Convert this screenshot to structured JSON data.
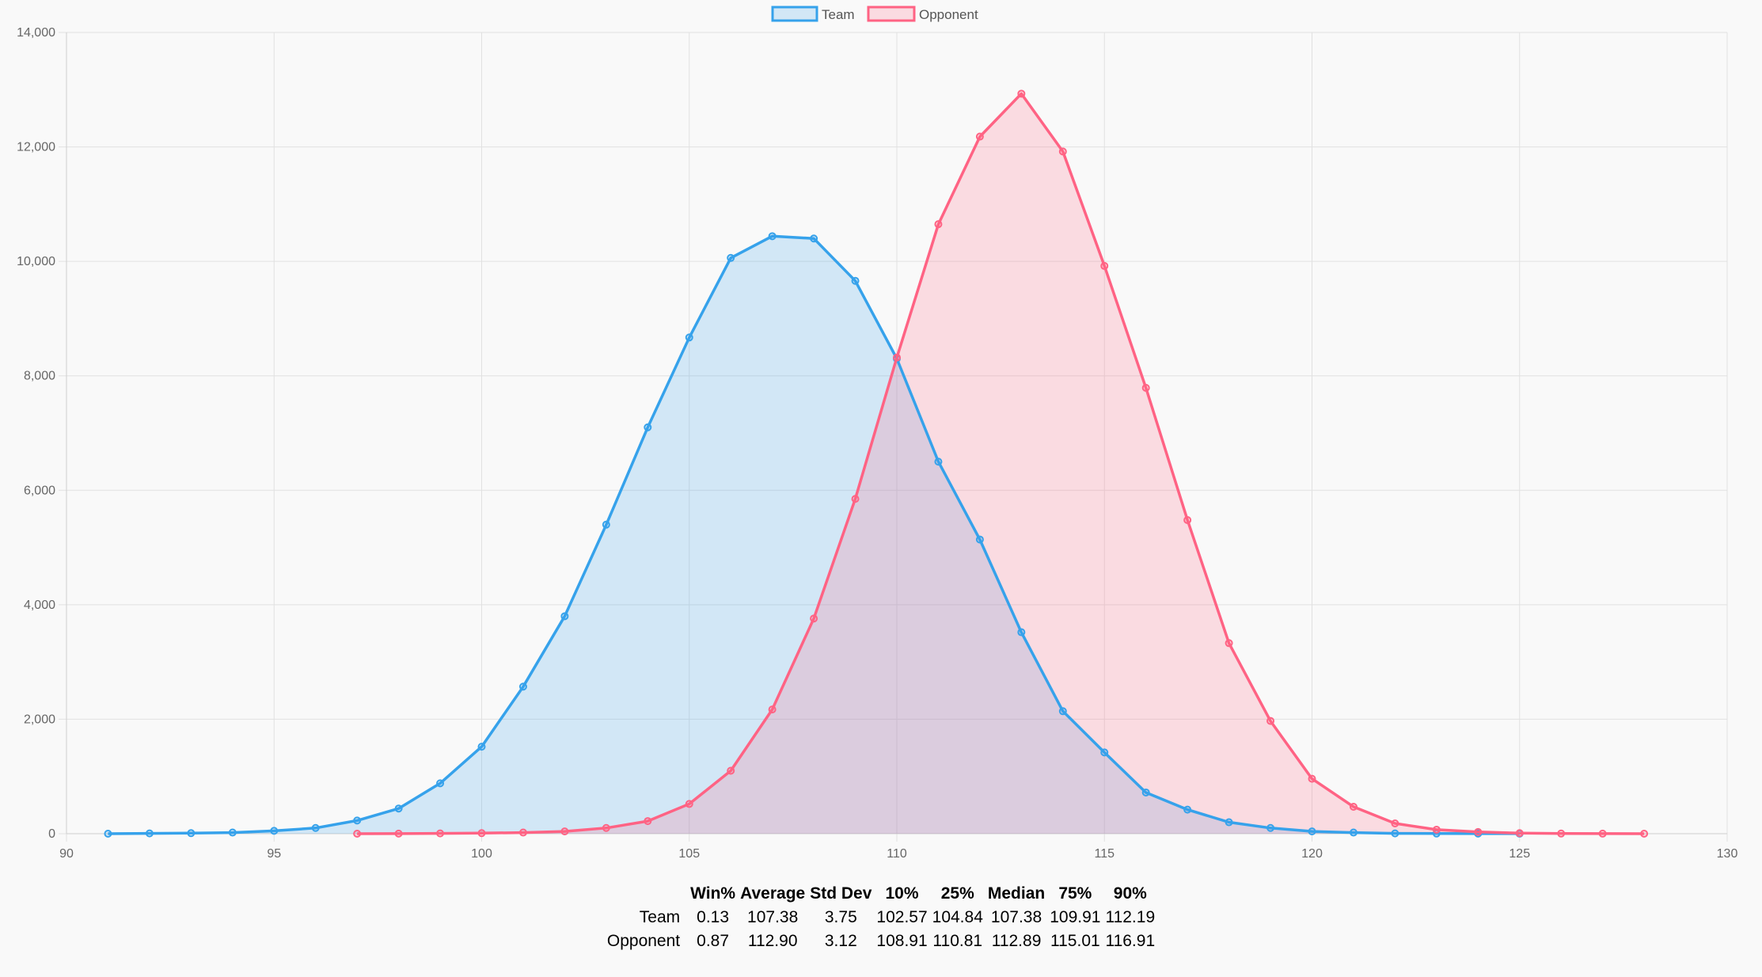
{
  "chart_data": {
    "type": "area",
    "title": "",
    "xlabel": "",
    "ylabel": "",
    "xlim": [
      90,
      130
    ],
    "ylim": [
      0,
      14000
    ],
    "x_ticks": [
      90,
      95,
      100,
      105,
      110,
      115,
      120,
      125,
      130
    ],
    "y_ticks": [
      0,
      2000,
      4000,
      6000,
      8000,
      10000,
      12000,
      14000
    ],
    "x_tick_labels": [
      "90",
      "95",
      "100",
      "105",
      "110",
      "115",
      "120",
      "125",
      "130"
    ],
    "y_tick_labels": [
      "0",
      "2,000",
      "4,000",
      "6,000",
      "8,000",
      "10,000",
      "12,000",
      "14,000"
    ],
    "grid": true,
    "legend_position": "top-center",
    "series": [
      {
        "name": "Team",
        "color": "#36a2eb",
        "fill": "rgba(54,162,235,0.2)",
        "x": [
          91,
          92,
          93,
          94,
          95,
          96,
          97,
          98,
          99,
          100,
          101,
          102,
          103,
          104,
          105,
          106,
          107,
          108,
          109,
          110,
          111,
          112,
          113,
          114,
          115,
          116,
          117,
          118,
          119,
          120,
          121,
          122,
          123,
          124,
          125
        ],
        "values": [
          0,
          5,
          10,
          20,
          50,
          100,
          230,
          440,
          880,
          1520,
          2570,
          3800,
          5400,
          7100,
          8670,
          10060,
          10440,
          10400,
          9660,
          8300,
          6500,
          5140,
          3520,
          2140,
          1420,
          720,
          420,
          200,
          100,
          40,
          20,
          5,
          3,
          2,
          1
        ]
      },
      {
        "name": "Opponent",
        "color": "#ff6384",
        "fill": "rgba(255,99,132,0.2)",
        "x": [
          97,
          98,
          99,
          100,
          101,
          102,
          103,
          104,
          105,
          106,
          107,
          108,
          109,
          110,
          111,
          112,
          113,
          114,
          115,
          116,
          117,
          118,
          119,
          120,
          121,
          122,
          123,
          124,
          125,
          126,
          127,
          128
        ],
        "values": [
          0,
          2,
          5,
          10,
          20,
          40,
          100,
          220,
          520,
          1100,
          2170,
          3760,
          5850,
          8320,
          10650,
          12180,
          12930,
          11920,
          9920,
          7790,
          5480,
          3330,
          1970,
          960,
          470,
          180,
          70,
          30,
          10,
          3,
          1,
          0
        ]
      }
    ]
  },
  "stats_table": {
    "headers": [
      "",
      "Win%",
      "Average",
      "Std Dev",
      "10%",
      "25%",
      "Median",
      "75%",
      "90%"
    ],
    "rows": [
      [
        "Team",
        "0.13",
        "107.38",
        "3.75",
        "102.57",
        "104.84",
        "107.38",
        "109.91",
        "112.19"
      ],
      [
        "Opponent",
        "0.87",
        "112.90",
        "3.12",
        "108.91",
        "110.81",
        "112.89",
        "115.01",
        "116.91"
      ]
    ]
  }
}
